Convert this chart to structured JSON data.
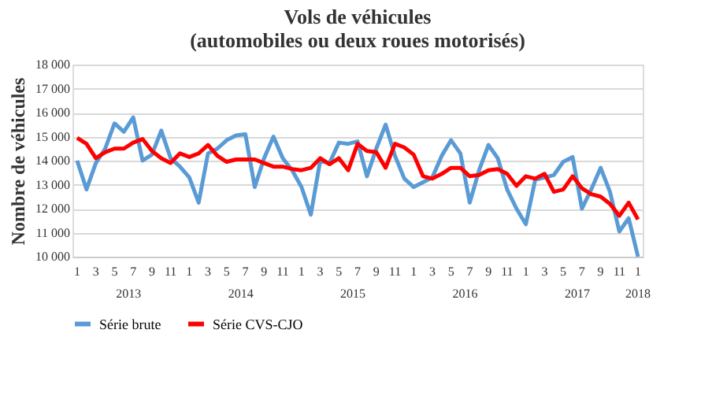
{
  "chart_data": {
    "type": "line",
    "title": "Vols de véhicules",
    "subtitle": "(automobiles ou deux roues motorisés)",
    "ylabel": "Nombre de véhicules",
    "categories": [
      "1",
      null,
      "3",
      null,
      "5",
      null,
      "7",
      null,
      "9",
      null,
      "11",
      null,
      "1",
      null,
      "3",
      null,
      "5",
      null,
      "7",
      null,
      "9",
      null,
      "11",
      null,
      "1",
      null,
      "3",
      null,
      "5",
      null,
      "7",
      null,
      "9",
      null,
      "11",
      null,
      "1",
      null,
      "3",
      null,
      "5",
      null,
      "7",
      null,
      "9",
      null,
      "11",
      null,
      "1",
      null,
      "3",
      null,
      "5",
      null,
      "7",
      null,
      "9",
      null,
      "11",
      null,
      "1"
    ],
    "series": [
      {
        "name": "Série brute",
        "color": "#5b9bd5",
        "values": [
          14000,
          12800,
          13900,
          14500,
          15550,
          15200,
          15800,
          14000,
          14250,
          15250,
          14100,
          13750,
          13300,
          12250,
          14300,
          14500,
          14850,
          15050,
          15100,
          12900,
          14100,
          15000,
          14100,
          13600,
          12900,
          11750,
          14000,
          13900,
          14750,
          14700,
          14800,
          13350,
          14500,
          15500,
          14200,
          13250,
          12900,
          13100,
          13300,
          14200,
          14850,
          14300,
          12250,
          13600,
          14650,
          14100,
          12800,
          12000,
          11350,
          13200,
          13300,
          13400,
          13950,
          14150,
          12000,
          12800,
          13700,
          12700,
          11050,
          11600,
          10000
        ]
      },
      {
        "name": "Série CVS-CJO",
        "color": "#ff0000",
        "values": [
          14950,
          14700,
          14100,
          14350,
          14500,
          14500,
          14750,
          14900,
          14400,
          14100,
          13900,
          14300,
          14150,
          14300,
          14650,
          14200,
          13950,
          14050,
          14050,
          14050,
          13900,
          13750,
          13750,
          13650,
          13600,
          13700,
          14100,
          13850,
          14100,
          13600,
          14700,
          14400,
          14350,
          13700,
          14700,
          14550,
          14250,
          13350,
          13250,
          13450,
          13700,
          13700,
          13350,
          13400,
          13600,
          13650,
          13450,
          12950,
          13350,
          13250,
          13450,
          12700,
          12800,
          13350,
          12850,
          12600,
          12500,
          12200,
          11700,
          12250,
          11550
        ]
      }
    ],
    "ylim": [
      10000,
      18000
    ],
    "yticks": [
      {
        "value": 10000,
        "label": "10 000"
      },
      {
        "value": 11000,
        "label": "11 000"
      },
      {
        "value": 12000,
        "label": "12 000"
      },
      {
        "value": 13000,
        "label": "13 000"
      },
      {
        "value": 14000,
        "label": "14 000"
      },
      {
        "value": 15000,
        "label": "15 000"
      },
      {
        "value": 16000,
        "label": "16 000"
      },
      {
        "value": 17000,
        "label": "17 000"
      },
      {
        "value": 18000,
        "label": "18 000"
      }
    ],
    "annotations": [
      "2013",
      "2014",
      "2015",
      "2016",
      "2017",
      "2018"
    ],
    "grid": "y",
    "legend": "bottom",
    "line_style": "solid",
    "marker": "none"
  }
}
